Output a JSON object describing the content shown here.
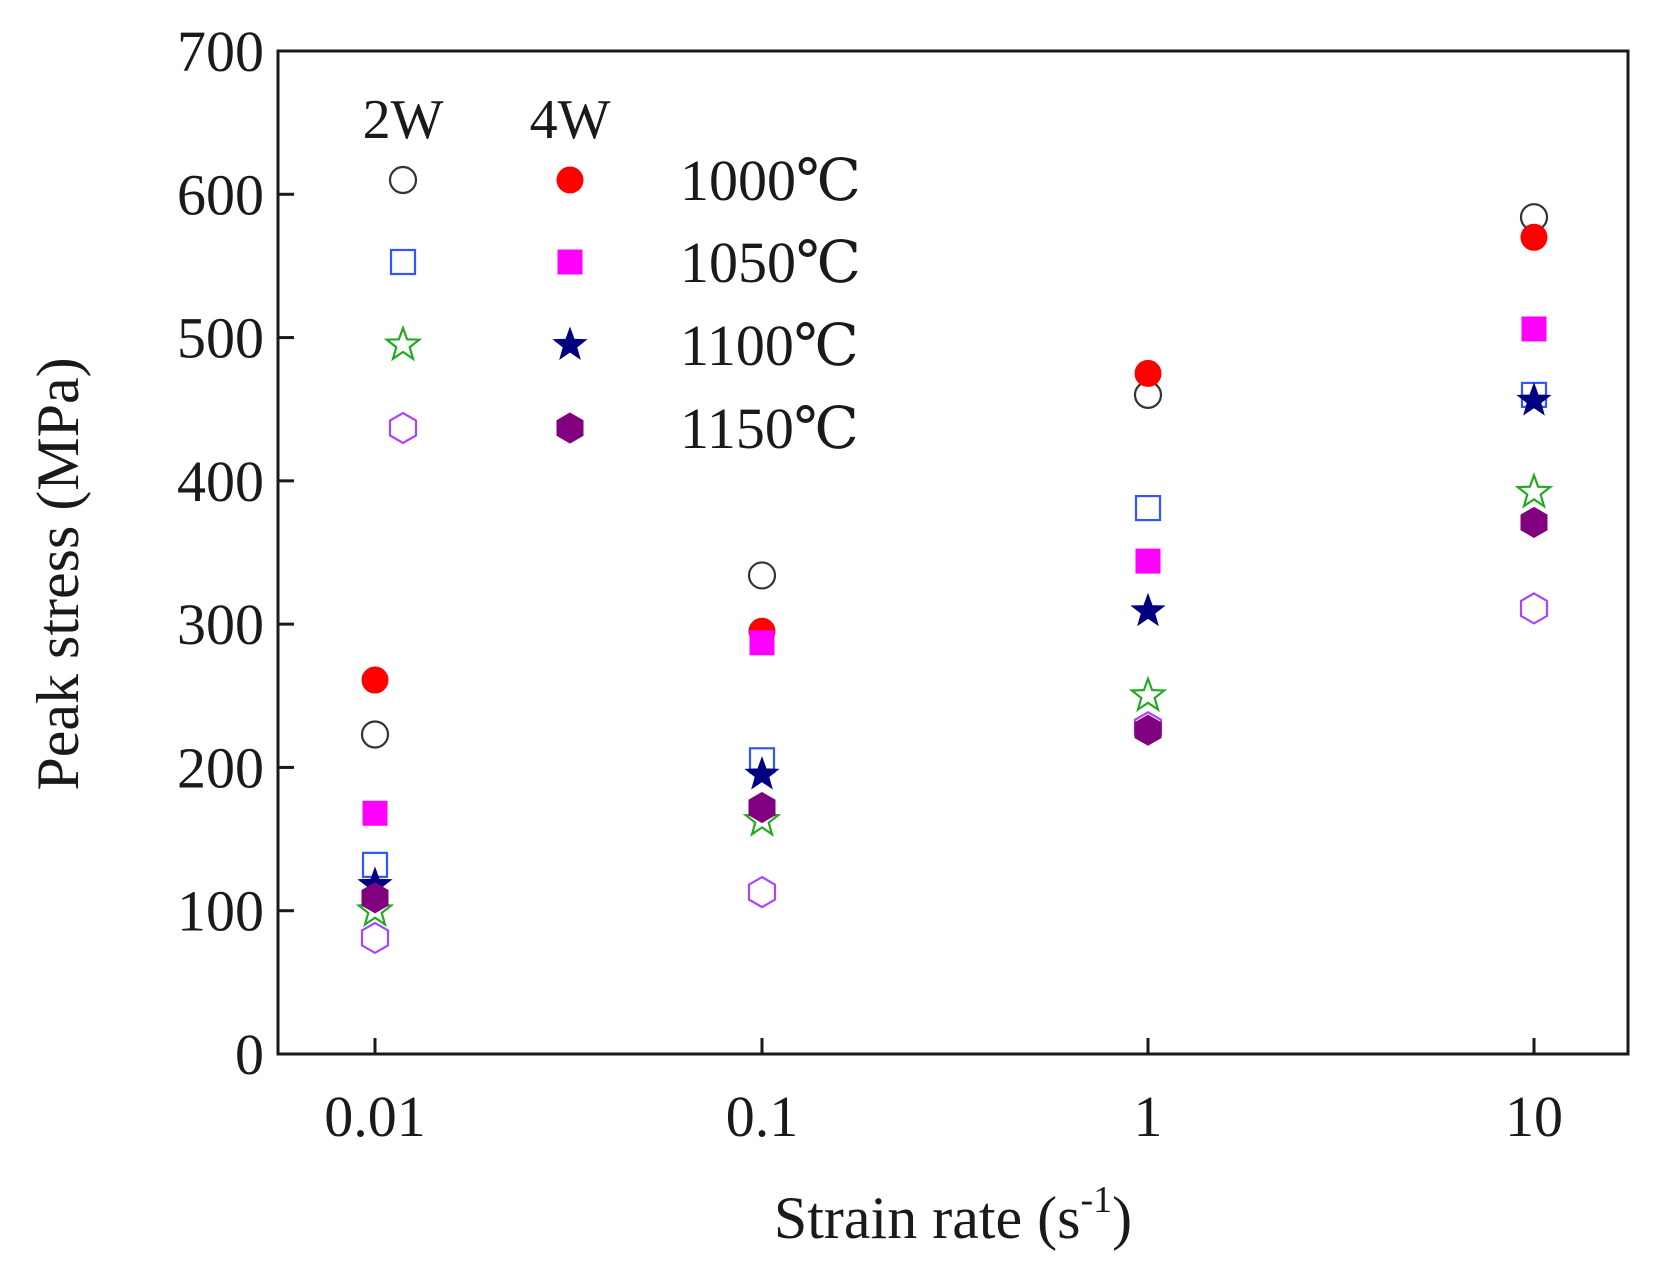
{
  "chart_data": {
    "type": "scatter",
    "title": "",
    "xlabel": "Strain rate (s",
    "xlabel_sup": "-1",
    "xlabel_close": ")",
    "ylabel": "Peak stress (MPa)",
    "x_categories": [
      "0.01",
      "0.1",
      "1",
      "10"
    ],
    "yticks": [
      "0",
      "100",
      "200",
      "300",
      "400",
      "500",
      "600",
      "700"
    ],
    "ylim": [
      0,
      700
    ],
    "legend": {
      "position": "top-left",
      "column_headers": [
        "2W",
        "4W"
      ],
      "rows": [
        {
          "label": "1000℃",
          "open_marker": "circle",
          "filled_marker": "circle",
          "color": "#ff0000",
          "open_color": "#333333"
        },
        {
          "label": "1050℃",
          "open_marker": "square",
          "filled_marker": "square",
          "color": "#ff00ff",
          "open_color": "#3355ff"
        },
        {
          "label": "1100℃",
          "open_marker": "star",
          "filled_marker": "star",
          "color": "#000080",
          "open_color": "#22aa22"
        },
        {
          "label": "1150℃",
          "open_marker": "hexagon",
          "filled_marker": "hexagon",
          "color": "#800080",
          "open_color": "#aa44ff"
        }
      ]
    },
    "series": [
      {
        "name": "2W 1000℃",
        "marker": "circle",
        "filled": false,
        "color": "#333333",
        "values": [
          223,
          334,
          460,
          584
        ]
      },
      {
        "name": "2W 1050℃",
        "marker": "square",
        "filled": false,
        "color": "#3355ff",
        "values": [
          132,
          205,
          381,
          460
        ]
      },
      {
        "name": "2W 1100℃",
        "marker": "star",
        "filled": false,
        "color": "#22aa22",
        "values": [
          100,
          163,
          250,
          392
        ]
      },
      {
        "name": "2W 1150℃",
        "marker": "hexagon",
        "filled": false,
        "color": "#aa44ff",
        "values": [
          81,
          113,
          228,
          311
        ]
      },
      {
        "name": "4W 1000℃",
        "marker": "circle",
        "filled": true,
        "color": "#ff0000",
        "values": [
          261,
          295,
          475,
          570
        ]
      },
      {
        "name": "4W 1050℃",
        "marker": "square",
        "filled": true,
        "color": "#ff00ff",
        "values": [
          168,
          287,
          344,
          506
        ]
      },
      {
        "name": "4W 1100℃",
        "marker": "star",
        "filled": true,
        "color": "#000080",
        "values": [
          118,
          195,
          309,
          456
        ]
      },
      {
        "name": "4W 1150℃",
        "marker": "hexagon",
        "filled": true,
        "color": "#800080",
        "values": [
          109,
          172,
          226,
          371
        ]
      }
    ]
  }
}
